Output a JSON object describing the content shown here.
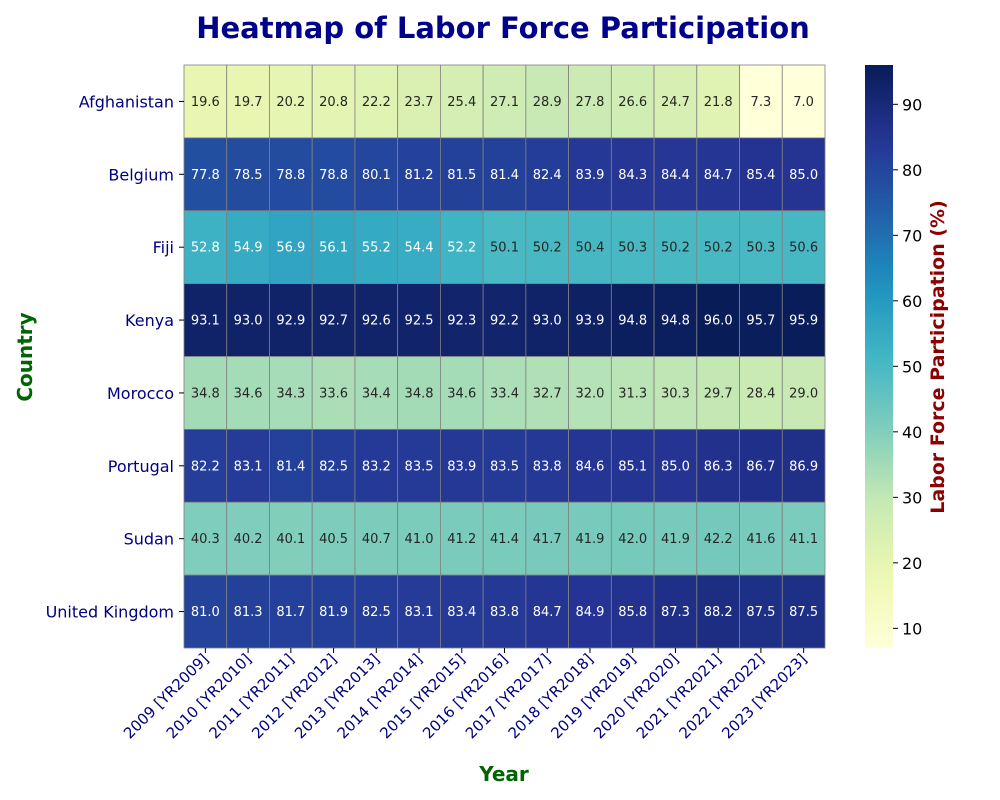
{
  "chart_data": {
    "type": "heatmap",
    "title": "Heatmap of Labor Force Participation",
    "xlabel": "Year",
    "ylabel": "Country",
    "colorbar_label": "Labor Force Participation (%)",
    "colormap": "YlGnBu",
    "color_range": [
      7.0,
      96.0
    ],
    "colorbar_ticks": [
      10,
      20,
      30,
      40,
      50,
      60,
      70,
      80,
      90
    ],
    "x_categories": [
      "2009 [YR2009]",
      "2010 [YR2010]",
      "2011 [YR2011]",
      "2012 [YR2012]",
      "2013 [YR2013]",
      "2014 [YR2014]",
      "2015 [YR2015]",
      "2016 [YR2016]",
      "2017 [YR2017]",
      "2018 [YR2018]",
      "2019 [YR2019]",
      "2020 [YR2020]",
      "2021 [YR2021]",
      "2022 [YR2022]",
      "2023 [YR2023]"
    ],
    "y_categories": [
      "Afghanistan",
      "Belgium",
      "Fiji",
      "Kenya",
      "Morocco",
      "Portugal",
      "Sudan",
      "United Kingdom"
    ],
    "values": [
      [
        19.6,
        19.7,
        20.2,
        20.8,
        22.2,
        23.7,
        25.4,
        27.1,
        28.9,
        27.8,
        26.6,
        24.7,
        21.8,
        7.3,
        7.0
      ],
      [
        77.8,
        78.5,
        78.8,
        78.8,
        80.1,
        81.2,
        81.5,
        81.4,
        82.4,
        83.9,
        84.3,
        84.4,
        84.7,
        85.4,
        85.0
      ],
      [
        52.8,
        54.9,
        56.9,
        56.1,
        55.2,
        54.4,
        52.2,
        50.1,
        50.2,
        50.4,
        50.3,
        50.2,
        50.2,
        50.3,
        50.6
      ],
      [
        93.1,
        93.0,
        92.9,
        92.7,
        92.6,
        92.5,
        92.3,
        92.2,
        93.0,
        93.9,
        94.8,
        94.8,
        96.0,
        95.7,
        95.9
      ],
      [
        34.8,
        34.6,
        34.3,
        33.6,
        34.4,
        34.8,
        34.6,
        33.4,
        32.7,
        32.0,
        31.3,
        30.3,
        29.7,
        28.4,
        29.0
      ],
      [
        82.2,
        83.1,
        81.4,
        82.5,
        83.2,
        83.5,
        83.9,
        83.5,
        83.8,
        84.6,
        85.1,
        85.0,
        86.3,
        86.7,
        86.9
      ],
      [
        40.3,
        40.2,
        40.1,
        40.5,
        40.7,
        41.0,
        41.2,
        41.4,
        41.7,
        41.9,
        42.0,
        41.9,
        42.2,
        41.6,
        41.1
      ],
      [
        81.0,
        81.3,
        81.7,
        81.9,
        82.5,
        83.1,
        83.4,
        83.8,
        84.7,
        84.9,
        85.8,
        87.3,
        88.2,
        87.5,
        87.5
      ]
    ]
  }
}
